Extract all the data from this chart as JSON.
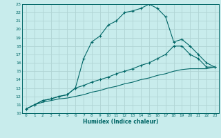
{
  "xlabel": "Humidex (Indice chaleur)",
  "bg_color": "#c8ecec",
  "grid_color": "#b0d4d4",
  "line_color": "#006666",
  "xlim": [
    -0.5,
    23.5
  ],
  "ylim": [
    10,
    23
  ],
  "xticks": [
    0,
    1,
    2,
    3,
    4,
    5,
    6,
    7,
    8,
    9,
    10,
    11,
    12,
    13,
    14,
    15,
    16,
    17,
    18,
    19,
    20,
    21,
    22,
    23
  ],
  "yticks": [
    10,
    11,
    12,
    13,
    14,
    15,
    16,
    17,
    18,
    19,
    20,
    21,
    22,
    23
  ],
  "line1_x": [
    0,
    1,
    2,
    3,
    4,
    5,
    6,
    7,
    8,
    9,
    10,
    11,
    12,
    13,
    14,
    15,
    16,
    17,
    18,
    19,
    20,
    21,
    22,
    23
  ],
  "line1_y": [
    10.5,
    11.0,
    11.5,
    11.7,
    12.0,
    12.2,
    13.0,
    16.5,
    18.5,
    19.2,
    20.5,
    21.0,
    22.0,
    22.2,
    22.5,
    23.0,
    22.5,
    21.5,
    18.5,
    18.8,
    18.0,
    17.0,
    16.0,
    15.5
  ],
  "line2_x": [
    0,
    1,
    2,
    3,
    4,
    5,
    6,
    7,
    8,
    9,
    10,
    11,
    12,
    13,
    14,
    15,
    16,
    17,
    18,
    19,
    20,
    21,
    22,
    23
  ],
  "line2_y": [
    10.5,
    11.0,
    11.5,
    11.7,
    12.0,
    12.2,
    13.0,
    13.3,
    13.7,
    14.0,
    14.3,
    14.7,
    15.0,
    15.3,
    15.7,
    16.0,
    16.5,
    17.0,
    18.0,
    18.0,
    17.0,
    16.5,
    15.5,
    15.5
  ],
  "line3_x": [
    0,
    1,
    2,
    3,
    4,
    5,
    6,
    7,
    8,
    9,
    10,
    11,
    12,
    13,
    14,
    15,
    16,
    17,
    18,
    19,
    20,
    21,
    22,
    23
  ],
  "line3_y": [
    10.5,
    11.0,
    11.3,
    11.5,
    11.7,
    11.8,
    12.0,
    12.2,
    12.5,
    12.7,
    13.0,
    13.2,
    13.5,
    13.7,
    14.0,
    14.2,
    14.5,
    14.7,
    15.0,
    15.2,
    15.3,
    15.3,
    15.3,
    15.5
  ]
}
